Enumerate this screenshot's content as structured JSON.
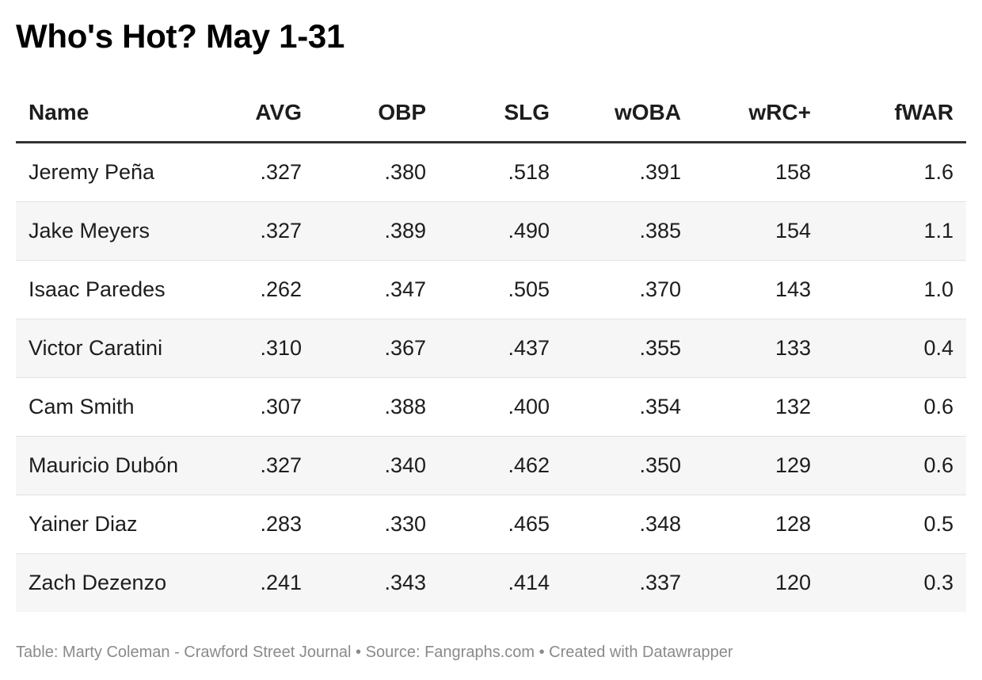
{
  "title": "Who's Hot? May 1-31",
  "footer": "Table: Marty Coleman - Crawford Street Journal • Source: Fangraphs.com • Created with Datawrapper",
  "chart_data": {
    "type": "table",
    "title": "Who's Hot? May 1-31",
    "columns": [
      "Name",
      "AVG",
      "OBP",
      "SLG",
      "wOBA",
      "wRC+",
      "fWAR"
    ],
    "rows": [
      [
        "Jeremy Peña",
        ".327",
        ".380",
        ".518",
        ".391",
        "158",
        "1.6"
      ],
      [
        "Jake Meyers",
        ".327",
        ".389",
        ".490",
        ".385",
        "154",
        "1.1"
      ],
      [
        "Isaac Paredes",
        ".262",
        ".347",
        ".505",
        ".370",
        "143",
        "1.0"
      ],
      [
        "Victor Caratini",
        ".310",
        ".367",
        ".437",
        ".355",
        "133",
        "0.4"
      ],
      [
        "Cam Smith",
        ".307",
        ".388",
        ".400",
        ".354",
        "132",
        "0.6"
      ],
      [
        "Mauricio Dubón",
        ".327",
        ".340",
        ".462",
        ".350",
        "129",
        "0.6"
      ],
      [
        "Yainer Diaz",
        ".283",
        ".330",
        ".465",
        ".348",
        "128",
        "0.5"
      ],
      [
        "Zach Dezenzo",
        ".241",
        ".343",
        ".414",
        ".337",
        "120",
        "0.3"
      ]
    ],
    "colors": {
      "header_rule": "#333333",
      "row_stripe": "#f6f6f6",
      "row_divider": "#e2e2e2",
      "footer_text": "#8a8a8a"
    }
  }
}
